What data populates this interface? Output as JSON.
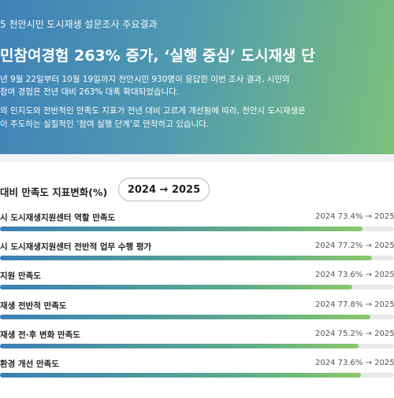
{
  "header": {
    "kicker": "5 천안시민 도시재생 설문조사 주요결과",
    "title": "민참여경험 263% 증가, ‘실행 중심’ 도시재생 단",
    "paragraph": [
      "년 9월 22일부터 10월 19일까지 천안시민 930명이 응답한 이번 조사 결과, 시민의",
      "참여 경험은 전년 대비 263% 대폭 확대되었습니다.",
      "의 인지도와 전반적인 만족도 지표가 전년 대비 고르게 개선됨에 따라, 천안시 도시재생은",
      "이 주도하는 실질적인 ‘참여 실행 단계’로 안착하고 있습니다."
    ]
  },
  "panel": {
    "title": "대비 만족도 지표변화(%)",
    "pill": "2024 → 2025",
    "rows": [
      {
        "label": "시 도시재생지원센터 역할 만족도",
        "compare": "2024 73.4% → 2025"
      },
      {
        "label": "시 도시재생지원센터 전반적 업무 수행 평가",
        "compare": "2024 77.2% → 2025"
      },
      {
        "label": " 지원 만족도",
        "compare": "2024 73.6% → 2025"
      },
      {
        "label": "재생 전반적 만족도",
        "compare": "2024 77.8% → 2025"
      },
      {
        "label": "재생 전·후 변화 만족도",
        "compare": "2024 75.2% → 2025"
      },
      {
        "label": "환경 개선 만족도",
        "compare": "2024 73.6% → 2025"
      }
    ]
  }
}
